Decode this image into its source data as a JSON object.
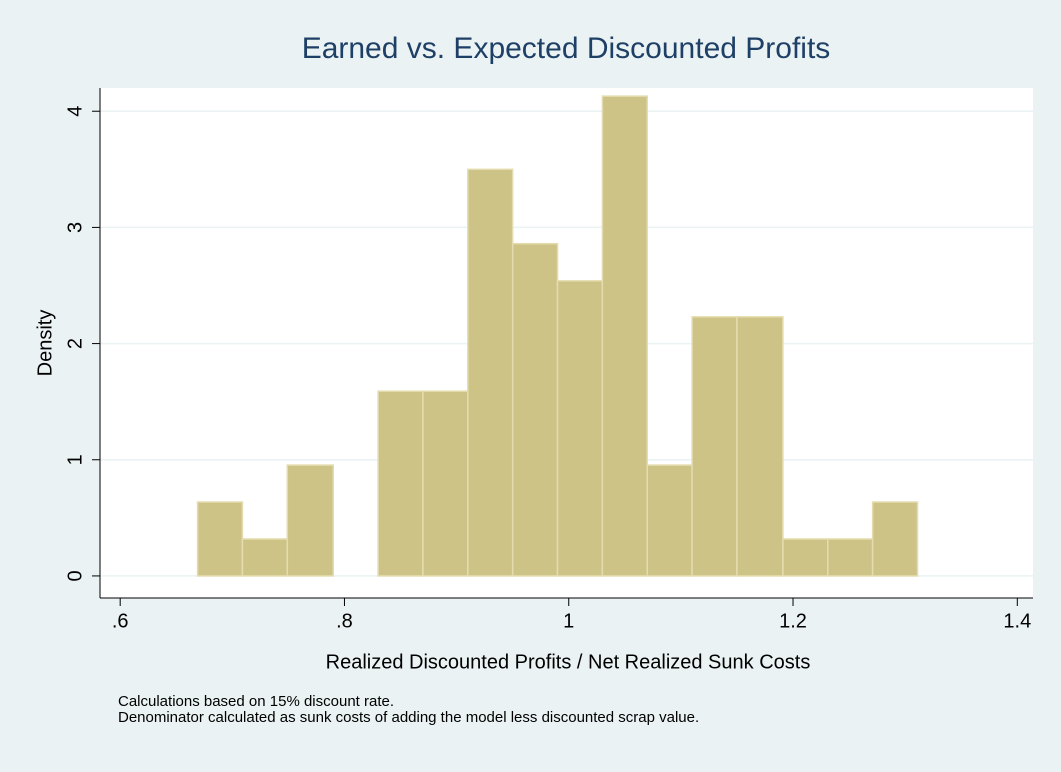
{
  "chart_data": {
    "type": "histogram",
    "title": "Earned vs. Expected Discounted Profits",
    "xlabel": "Realized Discounted Profits / Net Realized Sunk Costs",
    "ylabel": "Density",
    "notes": [
      "Calculations based on 15% discount rate.",
      "Denominator calculated as sunk costs of adding the model less discounted scrap value."
    ],
    "bins": [
      0.669,
      0.709,
      0.749,
      0.79,
      0.83,
      0.87,
      0.91,
      0.95,
      0.99,
      1.03,
      1.07,
      1.11,
      1.15,
      1.191,
      1.231,
      1.271,
      1.311
    ],
    "values": [
      0.636,
      0.318,
      0.954,
      0,
      1.59,
      1.59,
      3.5,
      2.86,
      2.54,
      4.13,
      0.954,
      2.23,
      2.23,
      0.318,
      0.318,
      0.636
    ],
    "color": "#cdc386",
    "xlim": [
      0.582,
      1.414
    ],
    "ylim": [
      -0.19,
      4.2
    ],
    "xticks": [
      {
        "value": 0.6,
        "label": ".6"
      },
      {
        "value": 0.8,
        "label": ".8"
      },
      1,
      1.2,
      1.4
    ],
    "yticks": [
      0,
      1,
      2,
      3,
      4
    ],
    "grid": true
  }
}
